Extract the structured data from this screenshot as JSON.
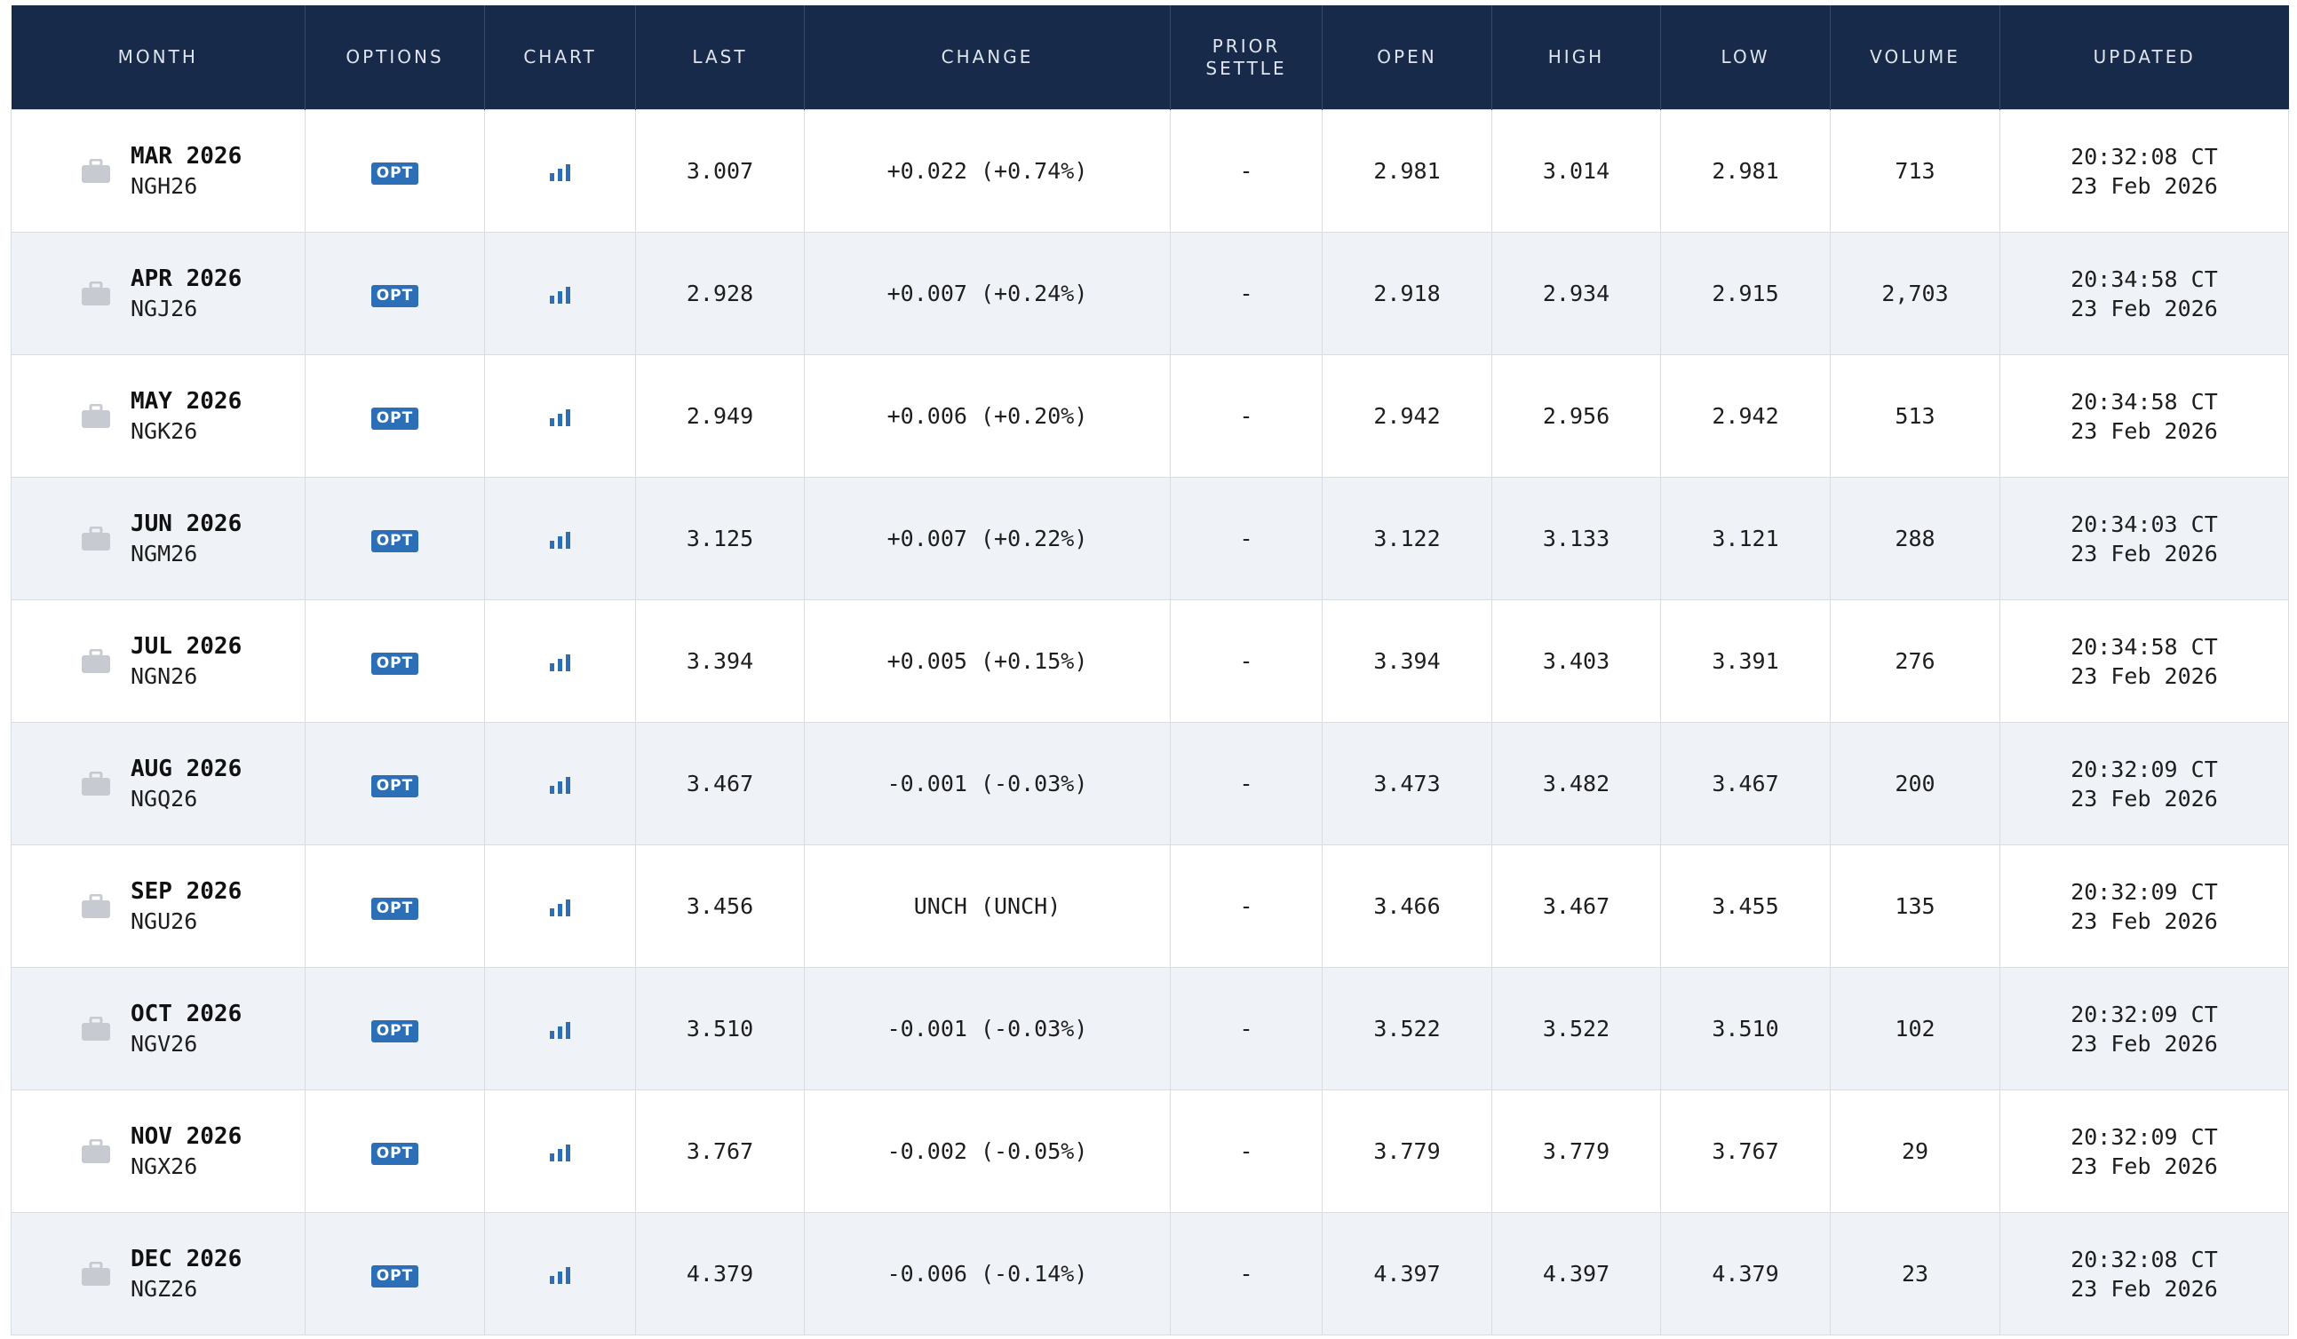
{
  "table": {
    "headers": {
      "month": "MONTH",
      "options": "OPTIONS",
      "chart": "CHART",
      "last": "LAST",
      "change": "CHANGE",
      "prior_settle_1": "PRIOR",
      "prior_settle_2": "SETTLE",
      "open": "OPEN",
      "high": "HIGH",
      "low": "LOW",
      "volume": "VOLUME",
      "updated": "UPDATED"
    },
    "opt_label": "OPT",
    "colors": {
      "header_bg": "#182a4a",
      "positive": "#2a8a17",
      "negative": "#e0301e",
      "badge": "#2d6fb7",
      "chart_icon": "#2d6fb7",
      "stripe": "#eff3f7"
    },
    "icons": {
      "month": "briefcase-icon",
      "chart": "bar-chart-icon"
    },
    "rows": [
      {
        "month": "MAR 2026",
        "code": "NGH26",
        "last": "3.007",
        "change": "+0.022 (+0.74%)",
        "dir": "pos",
        "prior_settle": "-",
        "open": "2.981",
        "high": "3.014",
        "low": "2.981",
        "volume": "713",
        "time": "20:32:08 CT",
        "date": "23 Feb 2026"
      },
      {
        "month": "APR 2026",
        "code": "NGJ26",
        "last": "2.928",
        "change": "+0.007 (+0.24%)",
        "dir": "pos",
        "prior_settle": "-",
        "open": "2.918",
        "high": "2.934",
        "low": "2.915",
        "volume": "2,703",
        "time": "20:34:58 CT",
        "date": "23 Feb 2026"
      },
      {
        "month": "MAY 2026",
        "code": "NGK26",
        "last": "2.949",
        "change": "+0.006 (+0.20%)",
        "dir": "pos",
        "prior_settle": "-",
        "open": "2.942",
        "high": "2.956",
        "low": "2.942",
        "volume": "513",
        "time": "20:34:58 CT",
        "date": "23 Feb 2026"
      },
      {
        "month": "JUN 2026",
        "code": "NGM26",
        "last": "3.125",
        "change": "+0.007 (+0.22%)",
        "dir": "pos",
        "prior_settle": "-",
        "open": "3.122",
        "high": "3.133",
        "low": "3.121",
        "volume": "288",
        "time": "20:34:03 CT",
        "date": "23 Feb 2026"
      },
      {
        "month": "JUL 2026",
        "code": "NGN26",
        "last": "3.394",
        "change": "+0.005 (+0.15%)",
        "dir": "pos",
        "prior_settle": "-",
        "open": "3.394",
        "high": "3.403",
        "low": "3.391",
        "volume": "276",
        "time": "20:34:58 CT",
        "date": "23 Feb 2026"
      },
      {
        "month": "AUG 2026",
        "code": "NGQ26",
        "last": "3.467",
        "change": "-0.001 (-0.03%)",
        "dir": "neg",
        "prior_settle": "-",
        "open": "3.473",
        "high": "3.482",
        "low": "3.467",
        "volume": "200",
        "time": "20:32:09 CT",
        "date": "23 Feb 2026"
      },
      {
        "month": "SEP 2026",
        "code": "NGU26",
        "last": "3.456",
        "change": "UNCH (UNCH)",
        "dir": "unch",
        "prior_settle": "-",
        "open": "3.466",
        "high": "3.467",
        "low": "3.455",
        "volume": "135",
        "time": "20:32:09 CT",
        "date": "23 Feb 2026"
      },
      {
        "month": "OCT 2026",
        "code": "NGV26",
        "last": "3.510",
        "change": "-0.001 (-0.03%)",
        "dir": "neg",
        "prior_settle": "-",
        "open": "3.522",
        "high": "3.522",
        "low": "3.510",
        "volume": "102",
        "time": "20:32:09 CT",
        "date": "23 Feb 2026"
      },
      {
        "month": "NOV 2026",
        "code": "NGX26",
        "last": "3.767",
        "change": "-0.002 (-0.05%)",
        "dir": "neg",
        "prior_settle": "-",
        "open": "3.779",
        "high": "3.779",
        "low": "3.767",
        "volume": "29",
        "time": "20:32:09 CT",
        "date": "23 Feb 2026"
      },
      {
        "month": "DEC 2026",
        "code": "NGZ26",
        "last": "4.379",
        "change": "-0.006 (-0.14%)",
        "dir": "neg",
        "prior_settle": "-",
        "open": "4.397",
        "high": "4.397",
        "low": "4.379",
        "volume": "23",
        "time": "20:32:08 CT",
        "date": "23 Feb 2026"
      }
    ]
  }
}
